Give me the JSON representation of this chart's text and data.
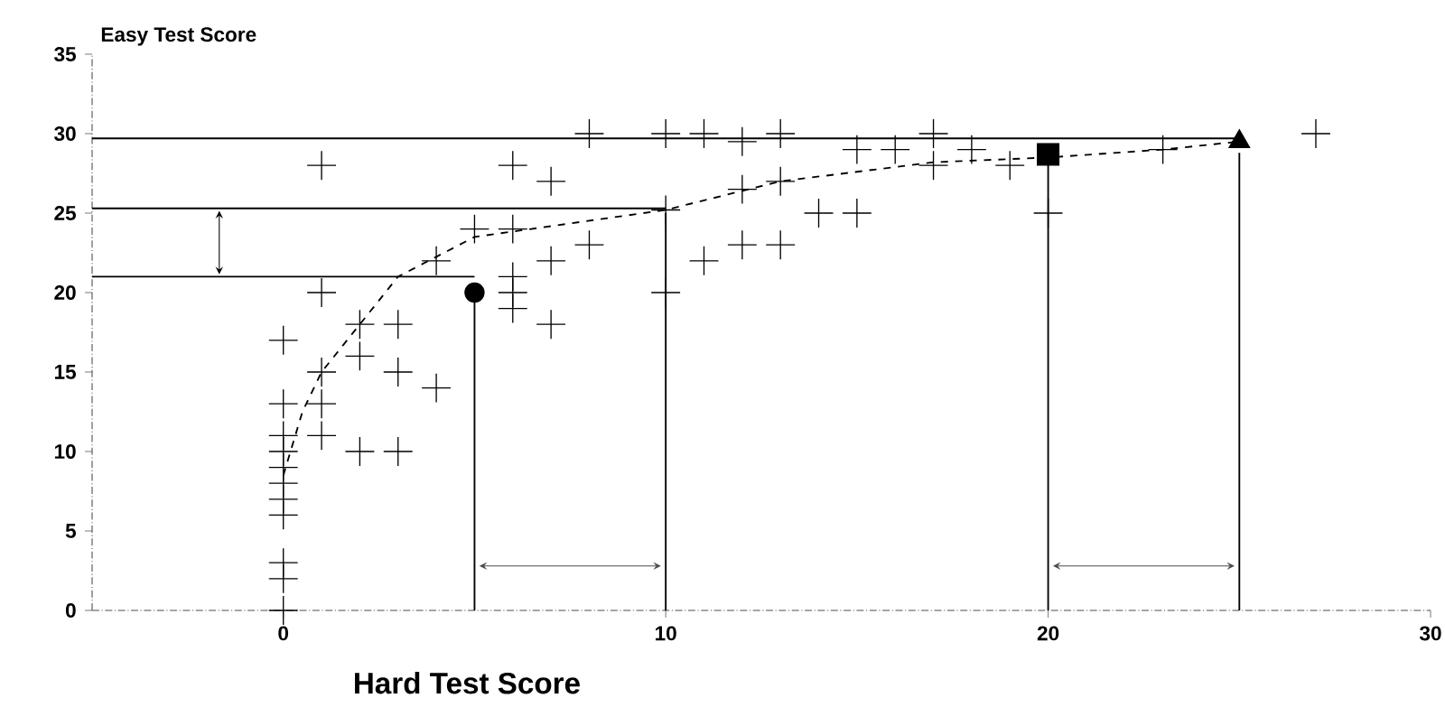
{
  "chart_data": {
    "type": "scatter",
    "xlabel": "Hard Test Score",
    "ylabel": "Easy Test Score",
    "xlim": [
      -5,
      30
    ],
    "ylim": [
      0,
      35
    ],
    "xticks": [
      0,
      10,
      20,
      30
    ],
    "yticks": [
      0,
      5,
      10,
      15,
      20,
      25,
      30,
      35
    ],
    "grid": false,
    "marker": "cross",
    "series": [
      {
        "color": "#000000",
        "x": [
          0,
          0,
          0,
          0,
          0,
          0,
          0,
          0,
          0,
          0,
          0,
          1,
          1,
          1,
          1,
          1,
          2,
          2,
          2,
          3,
          3,
          3,
          4,
          4,
          5,
          6,
          6,
          6,
          6,
          6,
          7,
          7,
          7,
          8,
          8,
          10,
          10,
          11,
          11,
          12,
          12,
          12,
          13,
          13,
          13,
          14,
          15,
          15,
          16,
          17,
          17,
          18,
          19,
          20,
          23,
          27
        ],
        "values": [
          0,
          2,
          3,
          6,
          7,
          8,
          9,
          10,
          11,
          13,
          17,
          20,
          15,
          13,
          11,
          28,
          18,
          16,
          10,
          18,
          15,
          10,
          22,
          14,
          24,
          24,
          21,
          19,
          28,
          20,
          27,
          22,
          18,
          30,
          23,
          30,
          20,
          30,
          22,
          29.5,
          26.5,
          23,
          30,
          27,
          23,
          25,
          29,
          25,
          29,
          30,
          28,
          29,
          28,
          25,
          29,
          30
        ]
      },
      {
        "type": "line",
        "marker": "none",
        "line_style": "dashed",
        "color": "#000000",
        "x": [
          0,
          0.5,
          1,
          2,
          3,
          5,
          10,
          13,
          17,
          20,
          23,
          25
        ],
        "values": [
          8.5,
          12.5,
          15,
          18,
          21,
          23.5,
          25.2,
          27,
          28.2,
          28.5,
          29,
          29.5
        ]
      },
      {
        "type": "line",
        "marker": "none",
        "color": "#000000",
        "x": [
          -5,
          5
        ],
        "values": [
          21,
          21
        ]
      },
      {
        "type": "line",
        "marker": "none",
        "color": "#000000",
        "x": [
          -5,
          10
        ],
        "values": [
          25.3,
          25.3
        ]
      },
      {
        "type": "line",
        "marker": "none",
        "color": "#000000",
        "x": [
          -5,
          25
        ],
        "values": [
          29.7,
          29.7
        ]
      },
      {
        "type": "line",
        "marker": "none",
        "color": "#000000",
        "x": [
          5,
          5
        ],
        "values": [
          0,
          20
        ]
      },
      {
        "type": "line",
        "marker": "none",
        "color": "#000000",
        "x": [
          10,
          10
        ],
        "values": [
          0,
          25
        ]
      },
      {
        "type": "line",
        "marker": "none",
        "color": "#000000",
        "x": [
          20,
          20
        ],
        "values": [
          0,
          28.5
        ]
      },
      {
        "type": "line",
        "marker": "none",
        "color": "#000000",
        "x": [
          25,
          25
        ],
        "values": [
          0,
          28.8
        ]
      },
      {
        "marker": "circle",
        "color": "#000000",
        "x": [
          5
        ],
        "values": [
          20
        ]
      },
      {
        "marker": "cross",
        "color": "#000000",
        "x": [
          10
        ],
        "values": [
          25.2
        ]
      },
      {
        "marker": "square",
        "color": "#000000",
        "x": [
          20
        ],
        "values": [
          28.7
        ]
      },
      {
        "marker": "triangle",
        "color": "#000000",
        "x": [
          25
        ],
        "values": [
          29.5
        ]
      }
    ]
  }
}
